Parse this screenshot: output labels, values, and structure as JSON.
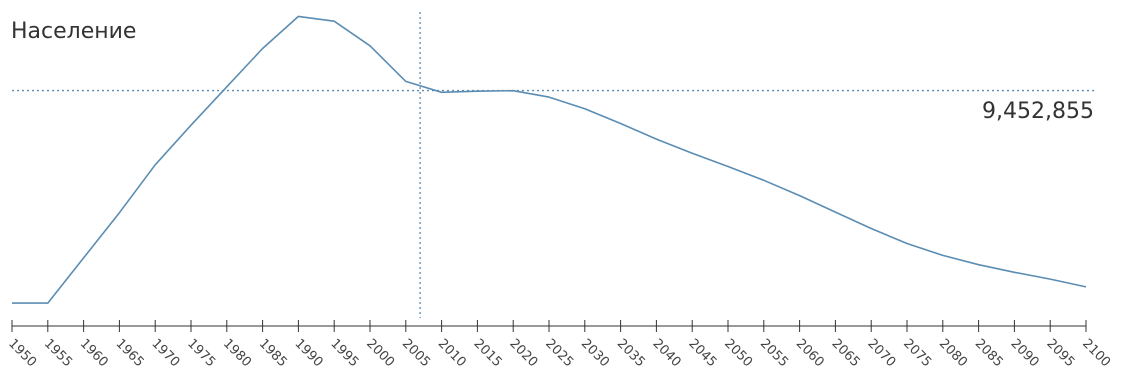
{
  "chart_data": {
    "type": "line",
    "title": "",
    "ylabel": "Население",
    "xlabel": "",
    "x": [
      1950,
      1955,
      1960,
      1965,
      1970,
      1975,
      1980,
      1985,
      1990,
      1995,
      2000,
      2005,
      2010,
      2015,
      2020,
      2025,
      2030,
      2035,
      2040,
      2045,
      2050,
      2055,
      2060,
      2065,
      2070,
      2075,
      2080,
      2085,
      2090,
      2095,
      2100
    ],
    "tick_labels": [
      "1950",
      "1955",
      "1960",
      "1965",
      "1970",
      "1975",
      "1980",
      "1985",
      "1990",
      "1995",
      "2000",
      "2005",
      "2010",
      "2015",
      "2020",
      "2025",
      "2030",
      "2035",
      "2040",
      "2045",
      "2050",
      "2055",
      "2060",
      "2065",
      "2070",
      "2075",
      "2080",
      "2085",
      "2090",
      "2095",
      "2100"
    ],
    "series": [
      {
        "values": [
          7900000,
          7900000,
          8230000,
          8560000,
          8910000,
          9200000,
          9480000,
          9760000,
          9995000,
          9960000,
          9780000,
          9520000,
          9440000,
          9448000,
          9452000,
          9405000,
          9320000,
          9212000,
          9098000,
          8995000,
          8898000,
          8797000,
          8685000,
          8565000,
          8445000,
          8335000,
          8248000,
          8180000,
          8125000,
          8075000,
          8018000
        ]
      }
    ],
    "xlim": [
      1950,
      2100
    ],
    "ylim": [
      7630000,
      10100000
    ],
    "crosshair": {
      "x": 2007,
      "y": 9452855,
      "label": "9,452,855"
    },
    "grid": false,
    "legend": "none"
  },
  "colors": {
    "line": "#5b8db3",
    "crosshair": "#5b8db3",
    "axis": "#333333",
    "text": "#333333"
  }
}
